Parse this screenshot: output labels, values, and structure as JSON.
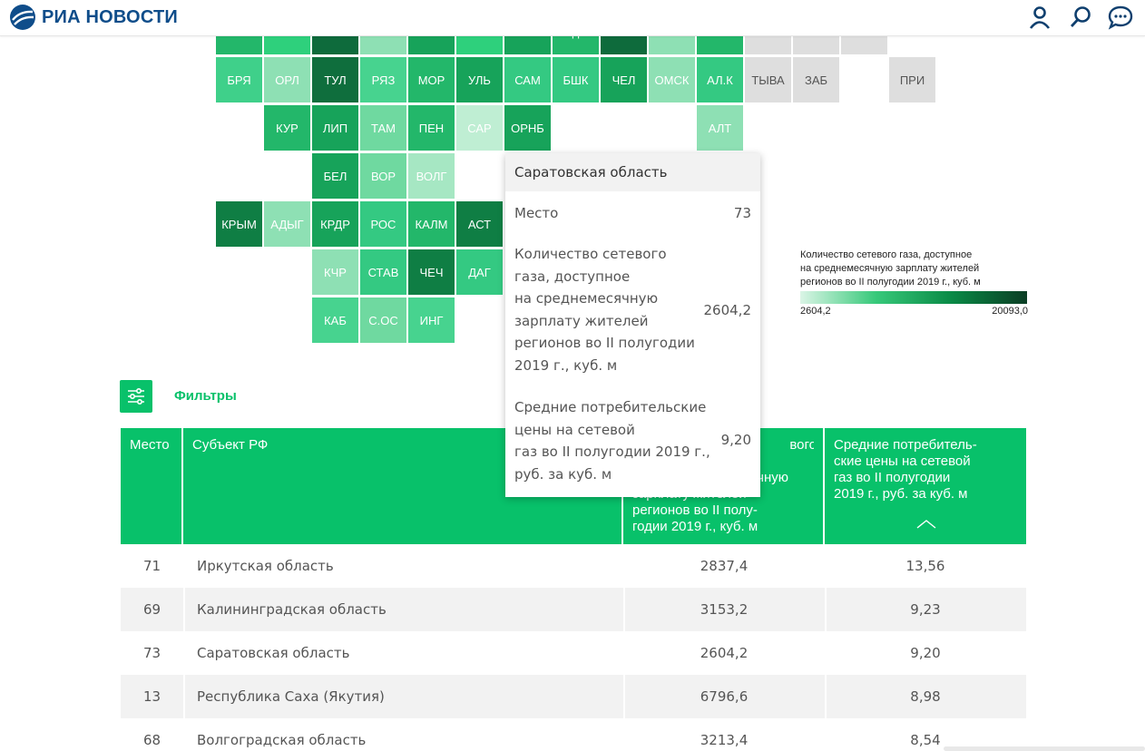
{
  "brand": {
    "name": "РИА НОВОСТИ",
    "color": "#0f4d8a"
  },
  "header_icons": [
    "user-icon",
    "search-icon",
    "chat-icon"
  ],
  "map_tiles": [
    {
      "code": "",
      "color": "#23b76a"
    },
    {
      "code": "",
      "color": "#2ed07c"
    },
    {
      "code": "",
      "color": "#0e6b3c"
    },
    {
      "code": "",
      "color": "#8ee0b4"
    },
    {
      "code": "",
      "color": "#17a35a"
    },
    {
      "code": "",
      "color": "#2ed07c"
    },
    {
      "code": "",
      "color": "#17a35a"
    },
    {
      "code": "д",
      "color": "#23b76a"
    },
    {
      "code": "",
      "color": "#0e6b3c"
    },
    {
      "code": "",
      "color": "#8ee0b4"
    },
    {
      "code": "",
      "color": "#23b76a"
    },
    {
      "code": "",
      "color": "#dedede"
    },
    {
      "code": "",
      "color": "#dedede"
    },
    {
      "code": "",
      "color": "#dedede"
    },
    {
      "code": "БРЯ",
      "color": "#3fd08a"
    },
    {
      "code": "ОРЛ",
      "color": "#8ee0b4"
    },
    {
      "code": "ТУЛ",
      "color": "#0f6e3d"
    },
    {
      "code": "РЯЗ",
      "color": "#47d38f"
    },
    {
      "code": "МОР",
      "color": "#23b76a"
    },
    {
      "code": "УЛЬ",
      "color": "#17a35a"
    },
    {
      "code": "САМ",
      "color": "#34c982"
    },
    {
      "code": "БШК",
      "color": "#34c982"
    },
    {
      "code": "ЧЕЛ",
      "color": "#17a35a"
    },
    {
      "code": "ОМСК",
      "color": "#8ee0b4"
    },
    {
      "code": "АЛ.К",
      "color": "#34c982"
    },
    {
      "code": "ТЫВА",
      "color": "#dedede"
    },
    {
      "code": "ЗАБ",
      "color": "#dedede"
    },
    {
      "code": "ПРИ",
      "color": "#dedede"
    },
    {
      "code": "КУР",
      "color": "#23b76a"
    },
    {
      "code": "ЛИП",
      "color": "#17a35a"
    },
    {
      "code": "ТАМ",
      "color": "#6fd9a0"
    },
    {
      "code": "ПЕН",
      "color": "#23b76a"
    },
    {
      "code": "САР",
      "color": "#bfeed3"
    },
    {
      "code": "ОРНБ",
      "color": "#17a35a"
    },
    {
      "code": "АЛТ",
      "color": "#8ee0b4"
    },
    {
      "code": "БЕЛ",
      "color": "#17a35a"
    },
    {
      "code": "ВОР",
      "color": "#6fd9a0"
    },
    {
      "code": "ВОЛГ",
      "color": "#a6e7c3"
    },
    {
      "code": "КРЫМ",
      "color": "#0f7e44"
    },
    {
      "code": "АДЫГ",
      "color": "#8ee0b4"
    },
    {
      "code": "КРДР",
      "color": "#17a35a"
    },
    {
      "code": "РОС",
      "color": "#34c982"
    },
    {
      "code": "КАЛМ",
      "color": "#23b76a"
    },
    {
      "code": "АСТ",
      "color": "#0f7e44"
    },
    {
      "code": "КЧР",
      "color": "#8ee0b4"
    },
    {
      "code": "СТАВ",
      "color": "#34c982"
    },
    {
      "code": "ЧЕЧ",
      "color": "#0f7e44"
    },
    {
      "code": "ДАГ",
      "color": "#34c982"
    },
    {
      "code": "КАБ",
      "color": "#47d38f"
    },
    {
      "code": "С.ОС",
      "color": "#6fd9a0"
    },
    {
      "code": "ИНГ",
      "color": "#47d38f"
    }
  ],
  "legend": {
    "title_line1": "Количество сетевого газа, доступное",
    "title_line2": "на среднемесячную зарплату жителей",
    "title_line3": "регионов во II полугодии 2019 г., куб. м",
    "min": "2604,2",
    "max": "20093,0"
  },
  "filters": {
    "label": "Фильтры"
  },
  "table": {
    "headers": [
      "Место",
      "Субъект РФ",
      "Количество сетевого газа, доступное на среднемесячную зарплату жителей регионов во II полугодии 2019 г., куб. м",
      "Средние потребитель-ские цены на сетевой газ во II полугодии 2019 г., руб. за куб. м"
    ],
    "header_visible_tail": [
      "вого",
      "чную",
      "зарплату жителей",
      "регионов во II полу-",
      "годии 2019 г., куб. м"
    ],
    "header_col4_lines": [
      "Средние потребитель-",
      "ские цены на сетевой",
      "газ во II полугодии",
      "2019 г., руб. за куб. м"
    ],
    "rows": [
      {
        "rank": "71",
        "region": "Иркутская область",
        "gas": "2837,4",
        "price": "13,56"
      },
      {
        "rank": "69",
        "region": "Калининградская область",
        "gas": "3153,2",
        "price": "9,23"
      },
      {
        "rank": "73",
        "region": "Саратовская область",
        "gas": "2604,2",
        "price": "9,20"
      },
      {
        "rank": "13",
        "region": "Республика Саха (Якутия)",
        "gas": "6796,6",
        "price": "8,98"
      },
      {
        "rank": "68",
        "region": "Волгоградская область",
        "gas": "3213,4",
        "price": "8,54"
      }
    ]
  },
  "tooltip": {
    "title": "Саратовская область",
    "place_label": "Место",
    "place_value": "73",
    "gas_label_lines": [
      "Количество сетевого",
      "газа, доступное",
      "на среднемесячную",
      "зарплату жителей",
      "регионов во II полугодии",
      "2019 г., куб. м"
    ],
    "gas_value": "2604,2",
    "price_label_lines": [
      "Средние потребительские",
      "цены на сетевой",
      "газ во II полугодии 2019 г.,",
      "руб. за куб. м"
    ],
    "price_value": "9,20"
  }
}
